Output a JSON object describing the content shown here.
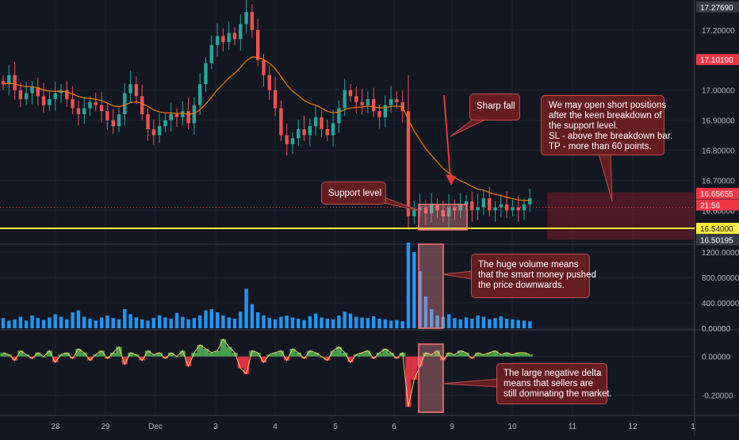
{
  "chart_data": [
    {
      "type": "candlestick",
      "pane": "price",
      "ylim": [
        16.49,
        17.3
      ],
      "y_ticks": [
        "17.20000",
        "17.00000",
        "16.90000",
        "16.80000",
        "16.70000",
        "16.60000"
      ],
      "price_tags": [
        {
          "label": "17.27690",
          "value": 17.2769,
          "color": "#363a45"
        },
        {
          "label": "17.10190",
          "value": 17.1019,
          "color": "#f23645"
        },
        {
          "label": "16.65655",
          "value": 16.65655,
          "color": "#f23645"
        },
        {
          "label": "21:56",
          "value": 16.618,
          "color": "#f23645"
        },
        {
          "label": "16.54000",
          "value": 16.54,
          "color": "#ffeb3b"
        },
        {
          "label": "16.50195",
          "value": 16.50195,
          "color": "#363a45"
        }
      ],
      "support_level": 16.54,
      "ma_color": "#f57c00",
      "up_color": "#26a69a",
      "down_color": "#ef5350",
      "approx_closes": [
        17.02,
        17.05,
        17.0,
        16.97,
        16.99,
        17.01,
        16.98,
        16.95,
        16.97,
        16.99,
        17.0,
        16.97,
        16.94,
        16.92,
        16.94,
        16.96,
        16.95,
        16.93,
        16.9,
        16.88,
        16.92,
        16.99,
        17.02,
        16.98,
        16.92,
        16.87,
        16.85,
        16.88,
        16.9,
        16.92,
        16.91,
        16.93,
        16.89,
        16.95,
        17.02,
        17.09,
        17.15,
        17.18,
        17.16,
        17.19,
        17.17,
        17.22,
        17.26,
        17.2,
        17.1,
        17.05,
        17.0,
        16.94,
        16.85,
        16.82,
        16.84,
        16.87,
        16.85,
        16.88,
        16.91,
        16.87,
        16.85,
        16.89,
        16.94,
        17.0,
        16.98,
        16.96,
        16.95,
        16.97,
        16.93,
        16.91,
        16.95,
        16.97,
        16.96,
        16.93,
        16.58,
        16.6,
        16.61,
        16.59,
        16.62,
        16.6,
        16.58,
        16.61,
        16.6,
        16.62,
        16.63,
        16.6,
        16.61,
        16.64,
        16.6,
        16.61,
        16.62,
        16.6,
        16.61,
        16.6,
        16.62,
        16.64
      ]
    },
    {
      "type": "bar",
      "pane": "volume",
      "ylim": [
        0,
        1300
      ],
      "y_ticks": [
        "1200.00000",
        "800.00000",
        "400.00000",
        "0.00000"
      ],
      "bar_color": "#2196f3",
      "approx_values": [
        160,
        120,
        140,
        180,
        120,
        200,
        160,
        130,
        170,
        220,
        180,
        140,
        250,
        280,
        180,
        150,
        120,
        170,
        200,
        160,
        140,
        300,
        220,
        170,
        140,
        120,
        160,
        200,
        170,
        150,
        240,
        180,
        140,
        160,
        200,
        280,
        300,
        250,
        200,
        170,
        150,
        260,
        620,
        380,
        250,
        200,
        160,
        140,
        180,
        200,
        170,
        150,
        130,
        190,
        230,
        170,
        150,
        140,
        200,
        260,
        230,
        180,
        170,
        160,
        190,
        150,
        140,
        120,
        130,
        110,
        1350,
        1200,
        900,
        500,
        300,
        200,
        180,
        220,
        160,
        140,
        170,
        150,
        200,
        180,
        140,
        160,
        190,
        150,
        140,
        130,
        120,
        110
      ]
    },
    {
      "type": "area",
      "pane": "delta",
      "ylim": [
        -0.3,
        0.13
      ],
      "y_ticks": [
        "0.00000",
        "-0.20000"
      ],
      "positive_color": "#4caf50",
      "negative_color": "#f23645",
      "approx_values": [
        0.02,
        0.01,
        -0.02,
        0.03,
        0.01,
        -0.01,
        0.02,
        0.0,
        0.03,
        -0.03,
        0.01,
        0.02,
        -0.01,
        0.04,
        0.02,
        -0.02,
        0.01,
        0.03,
        -0.01,
        0.02,
        0.05,
        -0.04,
        0.02,
        0.01,
        -0.02,
        0.03,
        0.01,
        0.02,
        -0.01,
        0.02,
        0.0,
        0.03,
        -0.05,
        0.02,
        0.06,
        0.04,
        0.02,
        0.03,
        0.09,
        0.05,
        0.02,
        -0.06,
        -0.09,
        0.03,
        0.02,
        -0.03,
        0.01,
        0.02,
        0.03,
        -0.02,
        0.04,
        0.02,
        -0.01,
        0.03,
        0.02,
        0.0,
        -0.02,
        0.03,
        0.05,
        0.02,
        -0.03,
        0.01,
        0.02,
        0.03,
        -0.01,
        0.02,
        0.04,
        0.02,
        -0.01,
        0.02,
        -0.26,
        -0.12,
        -0.05,
        0.02,
        0.01,
        0.03,
        -0.02,
        0.02,
        0.01,
        0.03,
        0.02,
        -0.01,
        0.02,
        0.01,
        0.02,
        0.03,
        0.01,
        0.02,
        0.01,
        0.02,
        0.02,
        0.01
      ]
    }
  ],
  "x_axis": {
    "labels": [
      "28",
      "29",
      "Dec",
      "3",
      "4",
      "5",
      "6",
      "9",
      "10",
      "11",
      "12",
      "1"
    ]
  },
  "annotations": {
    "sharp_fall": {
      "lines": [
        "Sharp fall"
      ]
    },
    "support": {
      "lines": [
        "Support level"
      ]
    },
    "short": {
      "lines": [
        "We may open short positions",
        "after the keen breakdown of",
        "the support level.",
        "SL - above the breakdown bar.",
        "TP - more than 60 points."
      ]
    },
    "volume": {
      "lines": [
        "The huge volume means",
        "that the smart money pushed",
        "the price downwards."
      ]
    },
    "delta": {
      "lines": [
        "The large negative delta",
        "means that sellers are",
        "still dominating the market."
      ]
    }
  },
  "colors": {
    "background": "#131722",
    "grid": "#1f2330",
    "pane_divider": "#3a3f4b",
    "axis_text": "#b2b5be",
    "highlight_fill": "rgba(255,150,150,0.35)",
    "highlight_stroke": "#ff7676",
    "target_zone": "rgba(120,28,40,0.55)",
    "arrow": "#e53935"
  }
}
